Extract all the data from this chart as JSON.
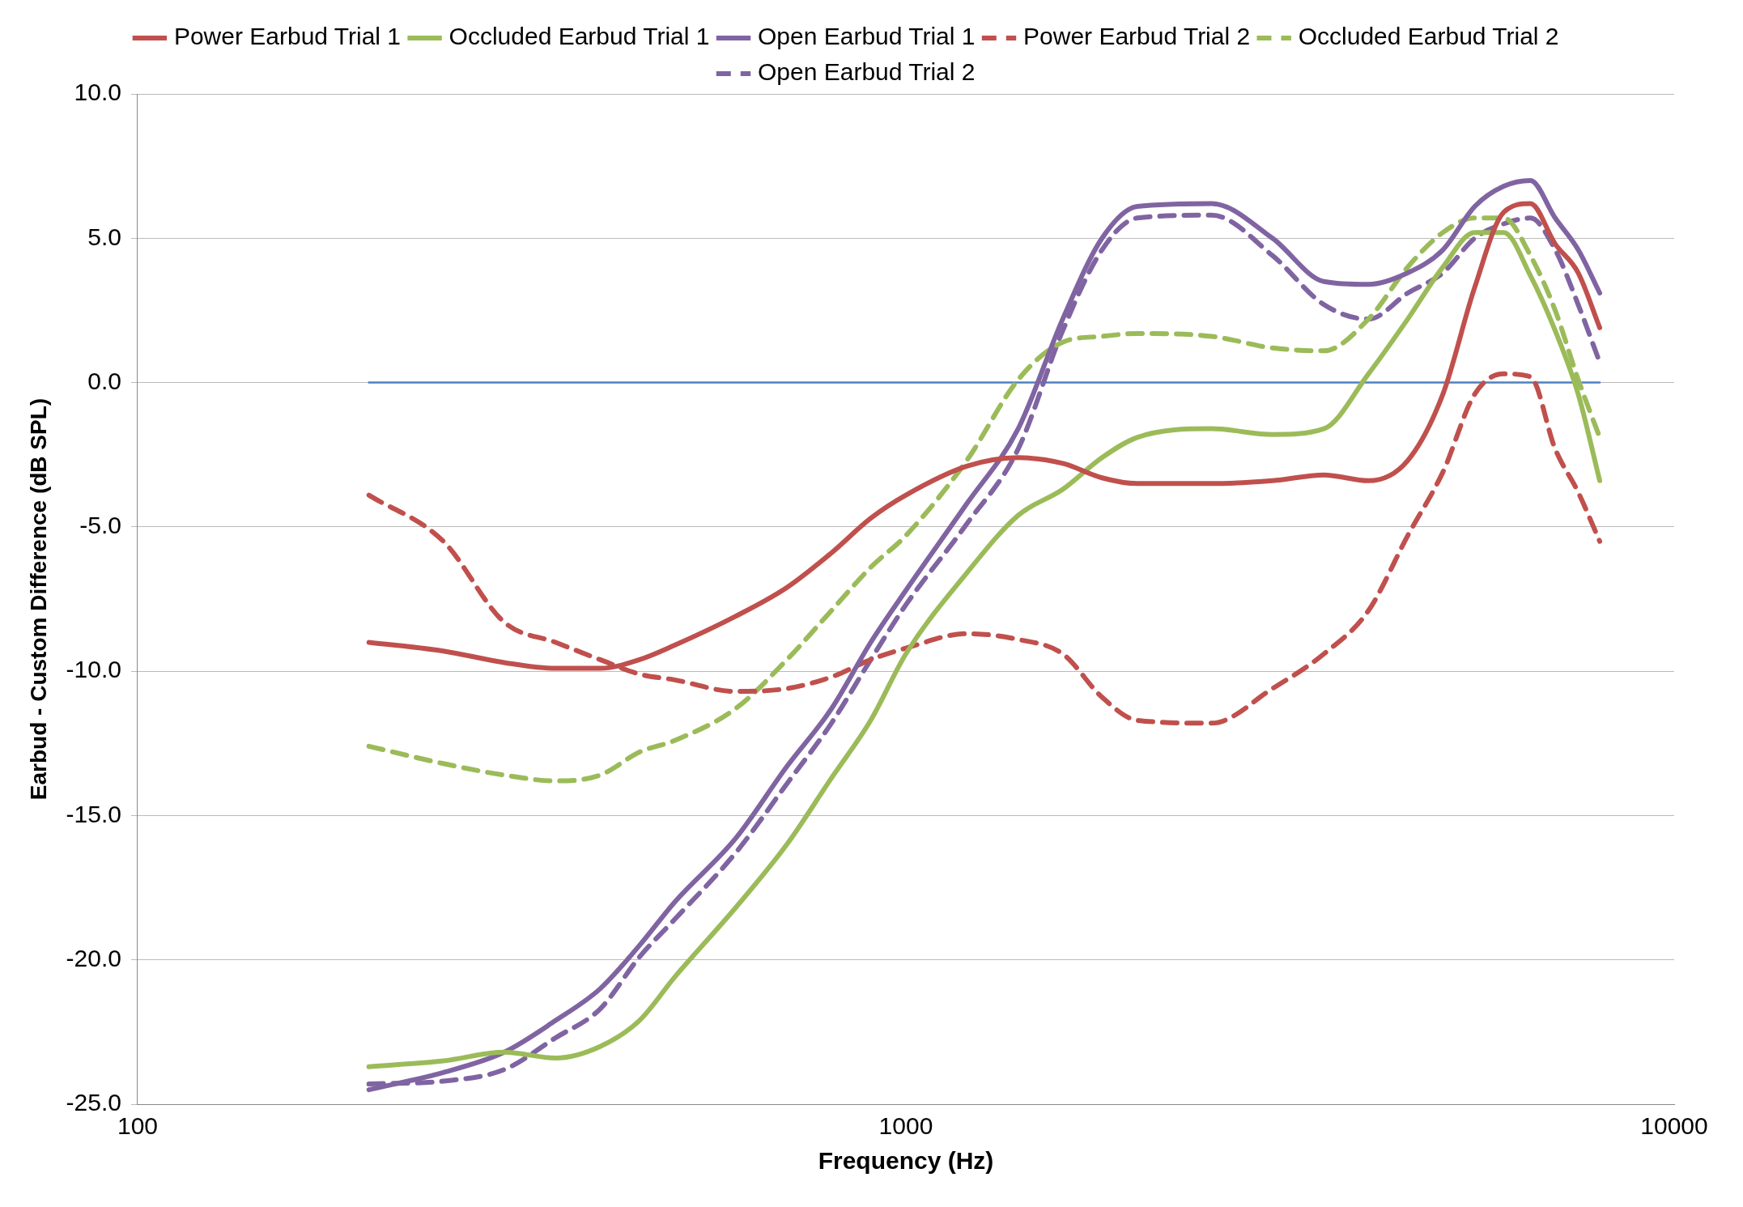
{
  "chart_data": {
    "type": "line",
    "xlabel": "Frequency (Hz)",
    "ylabel": "Earbud - Custom Difference (dB SPL)",
    "log": "x",
    "grid": "y",
    "legend": "top",
    "marker": "none",
    "xlim": [
      100,
      10000
    ],
    "xticks": [
      100,
      1000,
      10000
    ],
    "ylim": [
      -25,
      10
    ],
    "yticks": [
      {
        "value": -25,
        "label": "-25.0"
      },
      {
        "value": -20,
        "label": "-20.0"
      },
      {
        "value": -15,
        "label": "-15.0"
      },
      {
        "value": -10,
        "label": "-10.0"
      },
      {
        "value": -5,
        "label": "-5.0"
      },
      {
        "value": 0,
        "label": "0.0"
      },
      {
        "value": 5,
        "label": "5.0"
      },
      {
        "value": 10,
        "label": "10.0"
      }
    ],
    "x": [
      200,
      250,
      300,
      350,
      400,
      450,
      500,
      600,
      700,
      800,
      900,
      1000,
      1200,
      1400,
      1600,
      1800,
      2000,
      2500,
      3000,
      3500,
      4000,
      4500,
      5000,
      5500,
      6000,
      6500,
      7000,
      7500,
      8000
    ],
    "series": [
      {
        "name": "Power Earbud Trial 1",
        "color": "#c0504d",
        "line_style": "solid",
        "values": [
          -9.0,
          -9.3,
          -9.7,
          -9.9,
          -9.9,
          -9.6,
          -9.1,
          -8.1,
          -7.1,
          -5.9,
          -4.7,
          -3.9,
          -2.9,
          -2.6,
          -2.8,
          -3.3,
          -3.5,
          -3.5,
          -3.4,
          -3.2,
          -3.4,
          -2.7,
          -0.4,
          3.3,
          5.9,
          6.2,
          4.8,
          3.8,
          1.9
        ]
      },
      {
        "name": "Occluded Earbud Trial 1",
        "color": "#9bbb59",
        "line_style": "solid",
        "values": [
          -23.7,
          -23.5,
          -23.2,
          -23.4,
          -23.0,
          -22.1,
          -20.6,
          -18.2,
          -16.0,
          -13.7,
          -11.7,
          -9.4,
          -6.6,
          -4.6,
          -3.7,
          -2.6,
          -1.9,
          -1.6,
          -1.8,
          -1.6,
          0.3,
          2.2,
          4.0,
          5.2,
          5.2,
          3.7,
          1.8,
          -0.4,
          -3.4
        ]
      },
      {
        "name": "Open Earbud Trial 1",
        "color": "#8064a2",
        "line_style": "solid",
        "values": [
          -24.5,
          -23.9,
          -23.2,
          -22.1,
          -21.0,
          -19.5,
          -18.0,
          -15.8,
          -13.3,
          -11.3,
          -9.0,
          -7.2,
          -4.2,
          -1.6,
          2.2,
          5.0,
          6.1,
          6.2,
          5.0,
          3.5,
          3.4,
          3.8,
          4.6,
          6.1,
          6.8,
          7.0,
          5.7,
          4.6,
          3.1
        ]
      },
      {
        "name": "Power Earbud Trial 2",
        "color": "#c0504d",
        "line_style": "dashed",
        "values": [
          -3.9,
          -5.5,
          -8.3,
          -9.0,
          -9.6,
          -10.1,
          -10.3,
          -10.7,
          -10.6,
          -10.2,
          -9.6,
          -9.2,
          -8.7,
          -8.9,
          -9.4,
          -10.9,
          -11.7,
          -11.8,
          -10.6,
          -9.4,
          -7.9,
          -5.3,
          -3.1,
          -0.4,
          0.3,
          0.2,
          -2.3,
          -3.8,
          -5.5
        ]
      },
      {
        "name": "Occluded Earbud Trial 2",
        "color": "#9bbb59",
        "line_style": "dashed",
        "values": [
          -12.6,
          -13.2,
          -13.6,
          -13.8,
          -13.6,
          -12.8,
          -12.4,
          -11.3,
          -9.6,
          -7.9,
          -6.4,
          -5.3,
          -2.7,
          0.1,
          1.4,
          1.6,
          1.7,
          1.6,
          1.2,
          1.1,
          2.2,
          4.0,
          5.2,
          5.7,
          5.7,
          4.4,
          2.5,
          0.1,
          -1.9
        ]
      },
      {
        "name": "Open Earbud Trial 2",
        "color": "#8064a2",
        "line_style": "dashed",
        "values": [
          -24.3,
          -24.2,
          -23.8,
          -22.7,
          -21.7,
          -19.9,
          -18.6,
          -16.3,
          -13.9,
          -11.8,
          -9.6,
          -7.7,
          -4.9,
          -2.3,
          1.8,
          4.6,
          5.7,
          5.8,
          4.4,
          2.7,
          2.2,
          3.1,
          3.8,
          5.0,
          5.5,
          5.7,
          4.6,
          2.7,
          0.7
        ]
      },
      {
        "color": "#4f81bd",
        "line_style": "solid",
        "x": [
          200,
          8000
        ],
        "values": [
          0,
          0
        ]
      }
    ]
  }
}
